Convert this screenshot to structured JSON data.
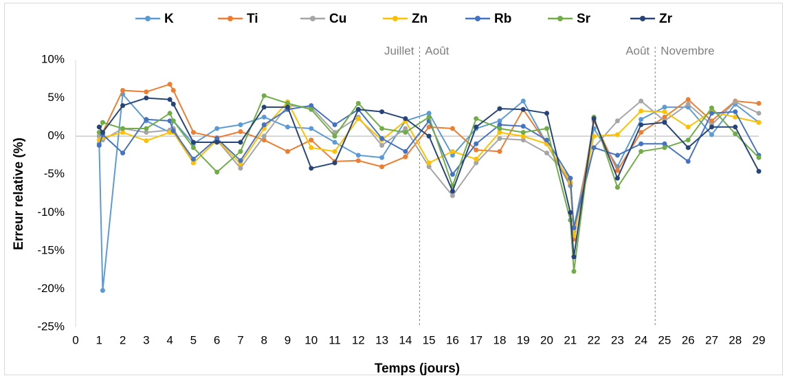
{
  "chart_data": {
    "type": "line",
    "y_label": "Erreur relative (%)",
    "x_label": "Temps (jours)",
    "x": [
      1,
      1.15,
      2,
      3,
      4,
      4.15,
      5,
      6,
      7,
      8,
      9,
      10,
      11,
      12,
      13,
      14,
      15,
      16,
      17,
      18,
      19,
      20,
      21,
      21.15,
      22,
      23,
      24,
      25,
      26,
      27,
      28,
      29
    ],
    "series": [
      {
        "name": "K",
        "color": "#5b9bd5",
        "values": [
          -1,
          -20.2,
          5.5,
          2,
          0.5,
          2,
          -1,
          1,
          1.5,
          2.5,
          1.2,
          1,
          -0.8,
          -2.5,
          -2.8,
          2,
          3,
          -2.5,
          1,
          2,
          4.6,
          -1,
          -6.5,
          -12,
          1,
          -4,
          2.2,
          3.8,
          3.8,
          0.2,
          4.2,
          1.8
        ]
      },
      {
        "name": "Ti",
        "color": "#ed7d31",
        "values": [
          0,
          0.5,
          6,
          5.8,
          6.8,
          6,
          0.5,
          -0.2,
          0.6,
          -0.5,
          -2,
          -0.5,
          -3.3,
          -3.2,
          -4,
          -2.7,
          1.2,
          1,
          -1.8,
          -2,
          3.5,
          -1,
          -6.2,
          -13.5,
          2,
          -4.5,
          0.5,
          2.5,
          4.8,
          2,
          4.6,
          4.3
        ]
      },
      {
        "name": "Cu",
        "color": "#a5a5a5",
        "values": [
          0,
          -0.5,
          1,
          0.5,
          0.8,
          1,
          -3.5,
          -0.5,
          -4.2,
          0,
          4,
          3.8,
          0.5,
          2.5,
          -1.2,
          1,
          -4,
          -7.8,
          -3.5,
          -0.3,
          -0.5,
          -2.2,
          -5.5,
          -12.5,
          -1.5,
          2,
          4.6,
          2,
          4.2,
          1.5,
          4.5,
          3
        ]
      },
      {
        "name": "Zn",
        "color": "#ffc000",
        "values": [
          -0.5,
          -0.2,
          0.5,
          -0.6,
          0.5,
          0.5,
          -3.5,
          -0.5,
          -3.6,
          1,
          4.5,
          -1.5,
          -2,
          2.3,
          -0.5,
          2,
          -3.5,
          -2,
          -3,
          0.5,
          0,
          -1,
          -6,
          -13,
          0,
          0.2,
          3.3,
          3.2,
          1.2,
          3.2,
          2.5,
          1.8
        ]
      },
      {
        "name": "Rb",
        "color": "#4472c4",
        "values": [
          -1.2,
          0.2,
          -2.2,
          2.2,
          2,
          0.7,
          -3,
          -0.3,
          -3.2,
          1.5,
          3.5,
          4,
          1.5,
          3.5,
          -0.3,
          -2,
          2,
          -5,
          -1,
          1.5,
          1.3,
          -0.5,
          -5.5,
          -12,
          -1.5,
          -2.5,
          -1,
          -1,
          -3.3,
          3,
          3.2,
          -2.5
        ]
      },
      {
        "name": "Sr",
        "color": "#70ad47",
        "values": [
          0.5,
          1.8,
          1,
          1,
          3,
          2,
          -1.5,
          -4.7,
          -2,
          5.3,
          4.3,
          3.5,
          0,
          4.3,
          1,
          0.5,
          2.5,
          -6.5,
          2.3,
          1,
          0.5,
          1,
          -11,
          -17.7,
          2.5,
          -6.7,
          -2,
          -1.5,
          -0.5,
          3.7,
          0.3,
          -2.8
        ]
      },
      {
        "name": "Zr",
        "color": "#264478",
        "values": [
          1.2,
          0.5,
          4,
          5,
          4.8,
          4.2,
          -0.8,
          -0.8,
          -0.8,
          3.8,
          3.8,
          -4.2,
          -3.5,
          3.5,
          3.2,
          2.3,
          0,
          -7.2,
          1.2,
          3.6,
          3.5,
          3,
          -10,
          -15.8,
          2.3,
          -5.5,
          1.5,
          1.8,
          -1.5,
          1.2,
          1.2,
          -4.6
        ]
      }
    ],
    "xlim": [
      0,
      29
    ],
    "xticks": [
      0,
      1,
      2,
      3,
      4,
      5,
      6,
      7,
      8,
      9,
      10,
      11,
      12,
      13,
      14,
      15,
      16,
      17,
      18,
      19,
      20,
      21,
      22,
      23,
      24,
      25,
      26,
      27,
      28,
      29
    ],
    "ylim": [
      -25,
      10
    ],
    "yticks": [
      {
        "value": -25,
        "label": "-25%"
      },
      {
        "value": -20,
        "label": "-20%"
      },
      {
        "value": -15,
        "label": "-15%"
      },
      {
        "value": -10,
        "label": "-10%"
      },
      {
        "value": -5,
        "label": "-5%"
      },
      {
        "value": 0,
        "label": "0%"
      },
      {
        "value": 5,
        "label": "5%"
      },
      {
        "value": 10,
        "label": "10%"
      }
    ],
    "annotations": [
      {
        "x": 14.6,
        "left": "Juillet",
        "right": "Août"
      },
      {
        "x": 24.6,
        "left": "Août",
        "right": "Novembre"
      }
    ],
    "legend": "top"
  }
}
